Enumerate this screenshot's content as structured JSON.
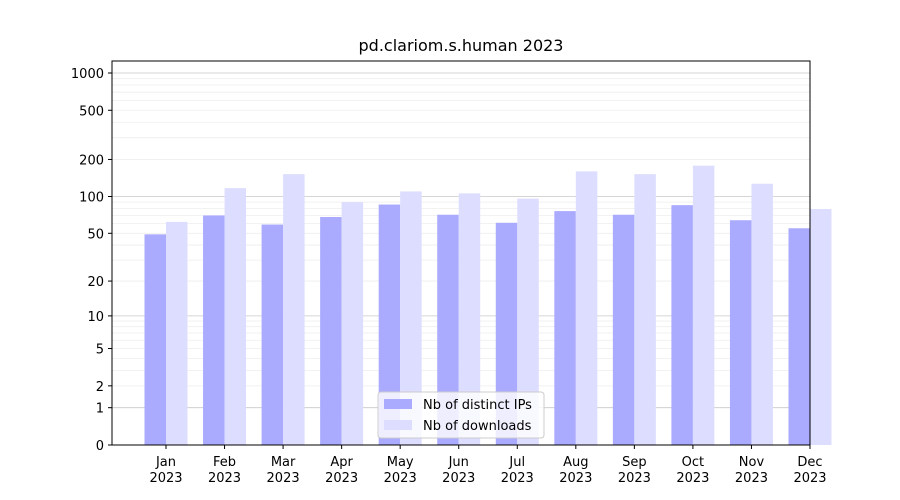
{
  "chart_data": {
    "type": "bar",
    "title": "pd.clariom.s.human 2023",
    "xlabel": "",
    "ylabel": "",
    "yscale": "log1p",
    "ylim": [
      0,
      1250
    ],
    "grid": true,
    "legend_position": "lower-center",
    "categories": [
      [
        "Jan",
        "2023"
      ],
      [
        "Feb",
        "2023"
      ],
      [
        "Mar",
        "2023"
      ],
      [
        "Apr",
        "2023"
      ],
      [
        "May",
        "2023"
      ],
      [
        "Jun",
        "2023"
      ],
      [
        "Jul",
        "2023"
      ],
      [
        "Aug",
        "2023"
      ],
      [
        "Sep",
        "2023"
      ],
      [
        "Oct",
        "2023"
      ],
      [
        "Nov",
        "2023"
      ],
      [
        "Dec",
        "2023"
      ]
    ],
    "yticks": [
      {
        "value": 0,
        "label": "0"
      },
      {
        "value": 1,
        "label": "1"
      },
      {
        "value": 2,
        "label": "2"
      },
      {
        "value": 5,
        "label": "5"
      },
      {
        "value": 10,
        "label": "10"
      },
      {
        "value": 20,
        "label": "20"
      },
      {
        "value": 50,
        "label": "50"
      },
      {
        "value": 100,
        "label": "100"
      },
      {
        "value": 200,
        "label": "200"
      },
      {
        "value": 500,
        "label": "500"
      },
      {
        "value": 1000,
        "label": "1000"
      }
    ],
    "series": [
      {
        "name": "Nb of distinct IPs",
        "color": "#aaaaff",
        "values": [
          49,
          70,
          59,
          68,
          86,
          71,
          61,
          76,
          71,
          85,
          64,
          55
        ]
      },
      {
        "name": "Nb of downloads",
        "color": "#ddddff",
        "values": [
          62,
          117,
          152,
          90,
          110,
          106,
          96,
          160,
          152,
          178,
          127,
          79
        ]
      }
    ]
  }
}
